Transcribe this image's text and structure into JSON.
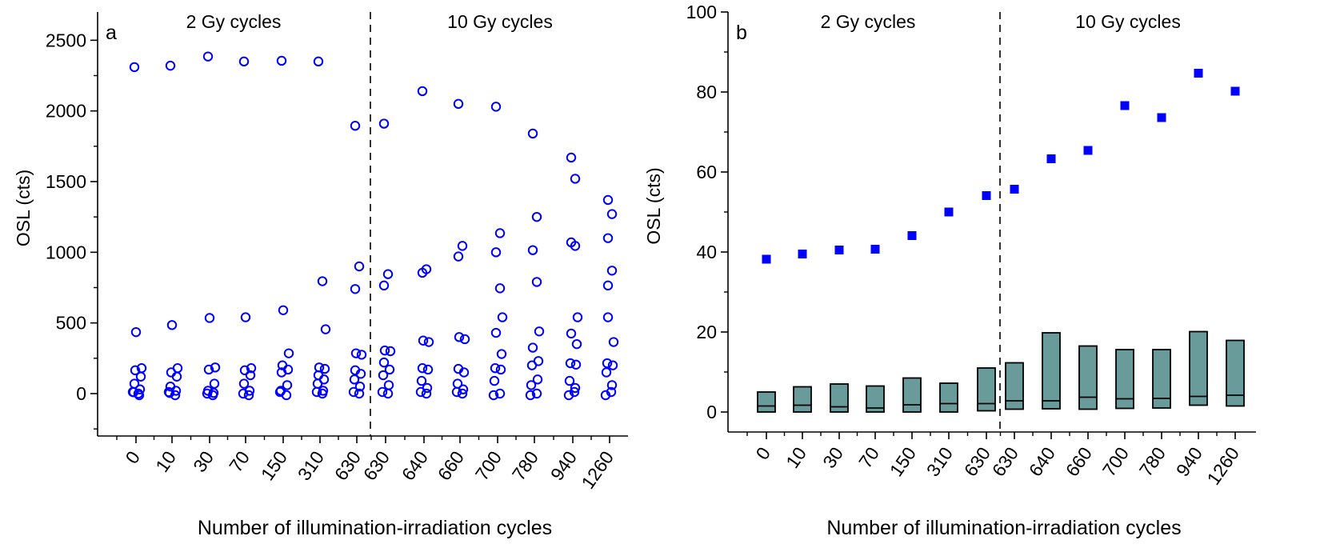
{
  "chart_data": [
    {
      "type": "scatter",
      "panel_label": "a",
      "ylabel": "OSL (cts)",
      "xlabel": "Number of illumination-irradiation cycles",
      "ylim": [
        -300,
        2700
      ],
      "yticks": [
        0,
        500,
        1000,
        1500,
        2000,
        2500
      ],
      "grid": false,
      "marker": "open-circle",
      "color": "#0000ff",
      "section_labels": [
        "2 Gy cycles",
        "10 Gy cycles"
      ],
      "categories": [
        "0",
        "10",
        "30",
        "70",
        "150",
        "310",
        "630",
        "630",
        "640",
        "660",
        "700",
        "780",
        "940",
        "1260"
      ],
      "values": [
        [
          2310,
          435,
          180,
          165,
          120,
          70,
          30,
          10,
          0,
          0,
          0
        ],
        [
          2320,
          485,
          180,
          150,
          120,
          50,
          20,
          5,
          0,
          0
        ],
        [
          2385,
          535,
          185,
          170,
          70,
          20,
          5,
          0,
          0
        ],
        [
          2350,
          540,
          180,
          165,
          130,
          70,
          20,
          0,
          0
        ],
        [
          2355,
          590,
          285,
          200,
          170,
          150,
          60,
          20,
          0,
          0
        ],
        [
          2350,
          795,
          455,
          185,
          175,
          130,
          100,
          70,
          20,
          0,
          0
        ],
        [
          1895,
          900,
          740,
          285,
          275,
          165,
          140,
          100,
          50,
          0,
          0
        ],
        [
          1910,
          845,
          765,
          305,
          300,
          220,
          170,
          130,
          60,
          0,
          0
        ],
        [
          2140,
          880,
          855,
          375,
          365,
          180,
          170,
          90,
          40,
          0,
          0
        ],
        [
          2050,
          1045,
          970,
          400,
          385,
          175,
          150,
          70,
          30,
          0,
          0
        ],
        [
          2030,
          1135,
          1000,
          745,
          540,
          430,
          280,
          180,
          170,
          90,
          0,
          0
        ],
        [
          1840,
          1250,
          1015,
          790,
          440,
          325,
          230,
          200,
          100,
          60,
          0,
          0
        ],
        [
          1670,
          1520,
          1070,
          1045,
          540,
          425,
          350,
          215,
          205,
          90,
          40,
          0,
          0
        ],
        [
          1370,
          1270,
          1100,
          870,
          765,
          540,
          365,
          215,
          200,
          150,
          60,
          0,
          0
        ]
      ]
    },
    {
      "type": "box+scatter",
      "panel_label": "b",
      "ylabel": "OSL (cts)",
      "xlabel": "Number of illumination-irradiation cycles",
      "ylim": [
        -5,
        100
      ],
      "yticks": [
        0,
        20,
        40,
        60,
        80,
        100
      ],
      "grid": false,
      "section_labels": [
        "2 Gy cycles",
        "10 Gy cycles"
      ],
      "categories": [
        "0",
        "10",
        "30",
        "70",
        "150",
        "310",
        "630",
        "630",
        "640",
        "660",
        "700",
        "780",
        "940",
        "1260"
      ],
      "marker_color": "#0000ff",
      "box_color": "#699b9b",
      "squares": [
        38.2,
        39.5,
        40.5,
        40.7,
        44.1,
        50.0,
        54.1,
        55.7,
        63.3,
        65.4,
        76.6,
        73.6,
        84.7,
        80.2
      ],
      "boxes": [
        {
          "low": 0,
          "median": 1.5,
          "high": 5.0
        },
        {
          "low": 0,
          "median": 1.7,
          "high": 6.3
        },
        {
          "low": 0,
          "median": 1.3,
          "high": 7.0
        },
        {
          "low": 0,
          "median": 1.0,
          "high": 6.5
        },
        {
          "low": 0,
          "median": 1.8,
          "high": 8.5
        },
        {
          "low": 0,
          "median": 2.1,
          "high": 7.2
        },
        {
          "low": 0.3,
          "median": 2.1,
          "high": 11.0
        },
        {
          "low": 0.7,
          "median": 2.8,
          "high": 12.3
        },
        {
          "low": 0.8,
          "median": 2.8,
          "high": 19.8
        },
        {
          "low": 0.7,
          "median": 3.7,
          "high": 16.5
        },
        {
          "low": 0.9,
          "median": 3.3,
          "high": 15.6
        },
        {
          "low": 1.0,
          "median": 3.4,
          "high": 15.6
        },
        {
          "low": 1.7,
          "median": 3.9,
          "high": 20.1
        },
        {
          "low": 1.5,
          "median": 4.2,
          "high": 17.9
        }
      ]
    }
  ]
}
